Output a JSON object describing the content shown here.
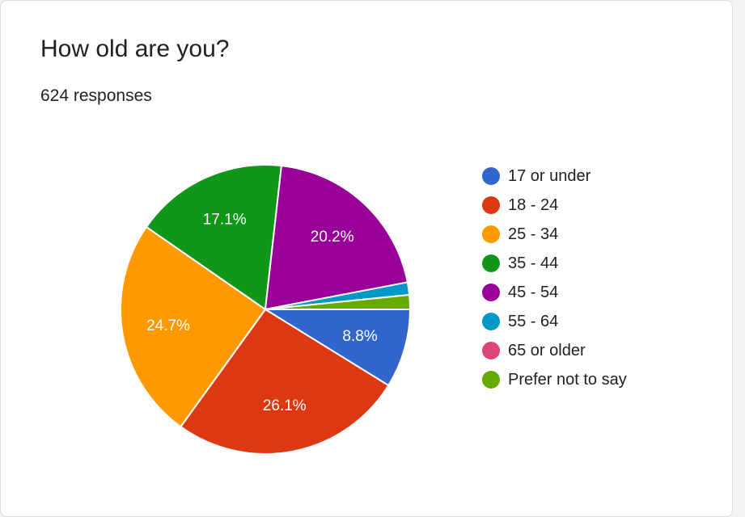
{
  "question": {
    "title": "How old are you?",
    "responses": "624 responses"
  },
  "chart_data": {
    "type": "pie",
    "start": "3 o'clock",
    "direction": "clockwise",
    "legend_position": "right",
    "slices": [
      {
        "label": "17 or under",
        "percent": 8.8,
        "value_label": "8.8%",
        "color": "#3366cc"
      },
      {
        "label": "18 - 24",
        "percent": 26.1,
        "value_label": "26.1%",
        "color": "#dc3912"
      },
      {
        "label": "25 - 34",
        "percent": 24.7,
        "value_label": "24.7%",
        "color": "#ff9900"
      },
      {
        "label": "35 - 44",
        "percent": 17.1,
        "value_label": "17.1%",
        "color": "#109618"
      },
      {
        "label": "45 - 54",
        "percent": 20.2,
        "value_label": "20.2%",
        "color": "#990099"
      },
      {
        "label": "55 - 64",
        "percent": 1.4,
        "value_label": "",
        "color": "#0099c6"
      },
      {
        "label": "65 or older",
        "percent": 0.0,
        "value_label": "",
        "color": "#dd4477"
      },
      {
        "label": "Prefer not to say",
        "percent": 1.6,
        "value_label": "",
        "color": "#66aa00"
      }
    ]
  }
}
